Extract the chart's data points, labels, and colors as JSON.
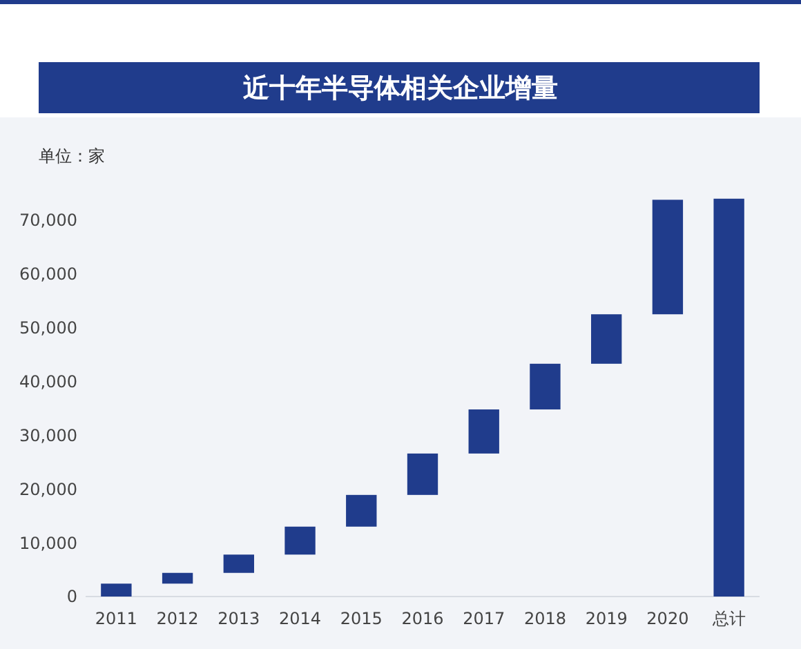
{
  "chart_data": {
    "type": "bar",
    "title": "近十年半导体相关企业增量",
    "ylabel": "单位：家",
    "categories": [
      "2011",
      "2012",
      "2013",
      "2014",
      "2015",
      "2016",
      "2017",
      "2018",
      "2019",
      "2020",
      "总计"
    ],
    "values": [
      2400,
      2000,
      3400,
      5200,
      5900,
      7700,
      8200,
      8500,
      9200,
      21300,
      74000
    ],
    "base": [
      0,
      2400,
      4400,
      7800,
      13000,
      18900,
      26600,
      34800,
      43300,
      52500,
      0
    ],
    "color": "#203c8c",
    "ylim": [
      0,
      75000
    ],
    "yticks": [
      {
        "value": 0,
        "label": "0"
      },
      {
        "value": 10000,
        "label": "10,000"
      },
      {
        "value": 20000,
        "label": "20,000"
      },
      {
        "value": 30000,
        "label": "30,000"
      },
      {
        "value": 40000,
        "label": "40,000"
      },
      {
        "value": 50000,
        "label": "50,000"
      },
      {
        "value": 60000,
        "label": "60,000"
      },
      {
        "value": 70000,
        "label": "70,000"
      }
    ],
    "grid": false
  }
}
